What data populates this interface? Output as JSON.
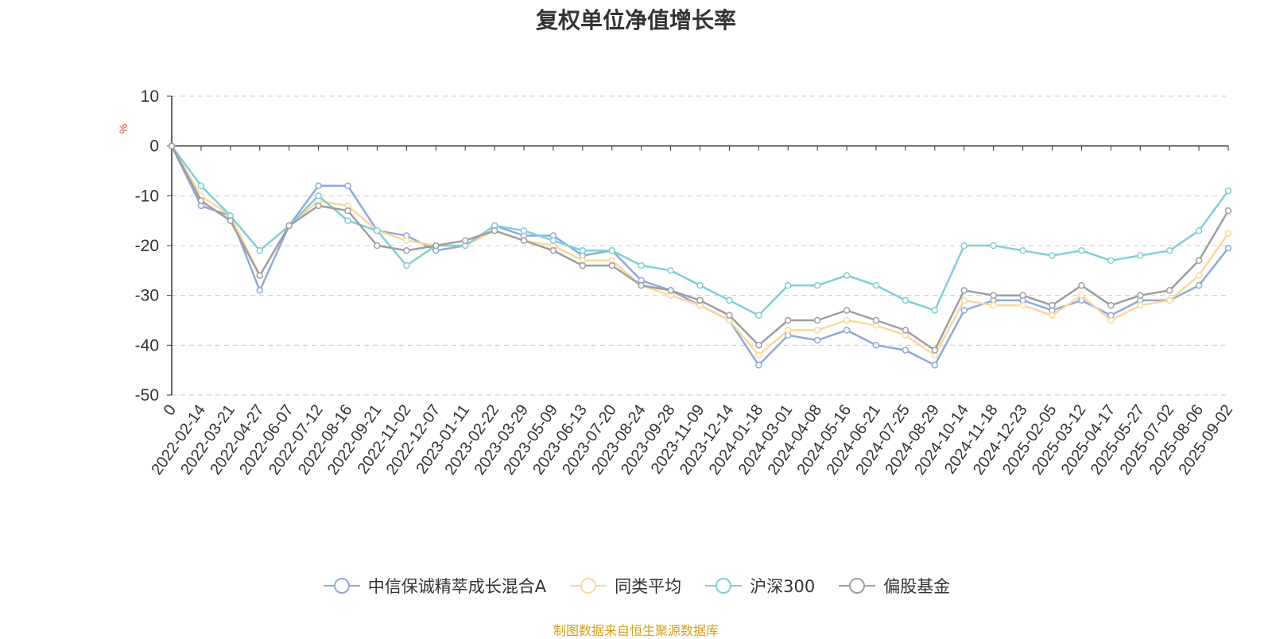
{
  "chart_data": {
    "type": "line",
    "title": "复权单位净值增长率",
    "ylabel": "%",
    "ylim": [
      -50,
      10
    ],
    "yticks": [
      10,
      0,
      -10,
      -20,
      -30,
      -40,
      -50
    ],
    "x_tick_labels": [
      "0",
      "2022-02-14",
      "2022-03-21",
      "2022-04-27",
      "2022-06-07",
      "2022-07-12",
      "2022-08-16",
      "2022-09-21",
      "2022-11-02",
      "2022-12-07",
      "2023-01-11",
      "2023-02-22",
      "2023-03-29",
      "2023-05-09",
      "2023-06-13",
      "2023-07-20",
      "2023-08-24",
      "2023-09-28",
      "2023-11-09",
      "2023-12-14",
      "2024-01-18",
      "2024-03-01",
      "2024-04-08",
      "2024-05-16",
      "2024-06-21",
      "2024-07-25",
      "2024-08-29",
      "2024-10-14",
      "2024-11-18",
      "2024-12-23",
      "2025-02-05",
      "2025-03-12",
      "2025-04-17",
      "2025-05-27",
      "2025-07-02",
      "2025-08-06",
      "2025-09-02"
    ],
    "grid": true,
    "legend_position": "bottom",
    "series": [
      {
        "name": "中信保诚精萃成长混合A",
        "color": "#8fa9dc",
        "values": [
          0,
          -12,
          -14,
          -29,
          -16,
          -8,
          -8,
          -17,
          -18,
          -21,
          -20,
          -16,
          -18,
          -18,
          -22,
          -21,
          -27,
          -29,
          -32,
          -35,
          -44,
          -38,
          -39,
          -37,
          -40,
          -41,
          -44,
          -33,
          -31,
          -31,
          -33,
          -31,
          -34,
          -31,
          -31,
          -28,
          -20.5
        ]
      },
      {
        "name": "同类平均",
        "color": "#fdd89b",
        "values": [
          0,
          -10,
          -14,
          -26,
          -16,
          -11,
          -12,
          -17,
          -19,
          -20,
          -20,
          -17,
          -19,
          -20,
          -23,
          -23,
          -28,
          -30,
          -32,
          -35,
          -42,
          -37,
          -37,
          -35,
          -36,
          -38,
          -42,
          -31,
          -32,
          -32,
          -34,
          -30,
          -35,
          -32,
          -31,
          -26,
          -17.5
        ]
      },
      {
        "name": "沪深300",
        "color": "#7fd0d6",
        "values": [
          0,
          -8,
          -14,
          -21,
          -16,
          -10,
          -15,
          -17,
          -24,
          -20,
          -20,
          -16,
          -17,
          -19,
          -21,
          -21,
          -24,
          -25,
          -28,
          -31,
          -34,
          -28,
          -28,
          -26,
          -28,
          -31,
          -33,
          -20,
          -20,
          -21,
          -22,
          -21,
          -23,
          -22,
          -21,
          -17,
          -9
        ]
      },
      {
        "name": "偏股基金",
        "color": "#9e9e9e",
        "values": [
          0,
          -11,
          -15,
          -26,
          -16,
          -12,
          -13,
          -20,
          -21,
          -20,
          -19,
          -17,
          -19,
          -21,
          -24,
          -24,
          -28,
          -29,
          -31,
          -34,
          -40,
          -35,
          -35,
          -33,
          -35,
          -37,
          -41,
          -29,
          -30,
          -30,
          -32,
          -28,
          -32,
          -30,
          -29,
          -23,
          -13
        ]
      }
    ]
  },
  "source_note": "制图数据来自恒生聚源数据库",
  "source_color": "#d4a017"
}
